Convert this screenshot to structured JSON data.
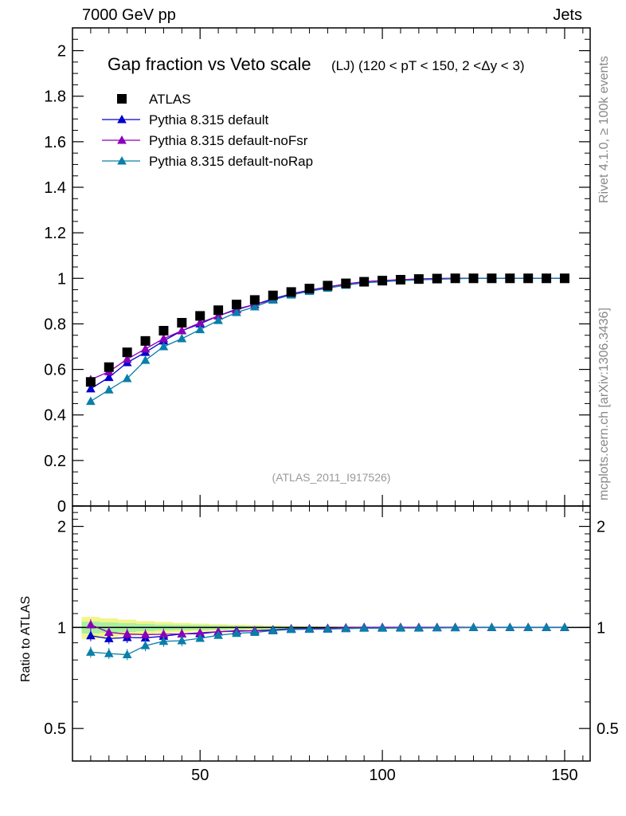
{
  "header": {
    "left": "7000 GeV pp",
    "right": "Jets"
  },
  "side_labels": {
    "rivet": "Rivet 4.1.0, ≥ 100k events",
    "mcplots": "mcplots.cern.ch [arXiv:1306.3436]"
  },
  "chart_data": {
    "type": "scatter",
    "title": "Gap fraction vs Veto scale",
    "subtitle": "(LJ) (120 < pT < 150, 2 <Δy < 3)",
    "watermark": "(ATLAS_2011_I917526)",
    "xlim": [
      15,
      157
    ],
    "ylim": [
      0,
      2.1
    ],
    "yticks": [
      "0",
      "0.2",
      "0.4",
      "0.6",
      "0.8",
      "1",
      "1.2",
      "1.4",
      "1.6",
      "1.8",
      "2"
    ],
    "xticks": [
      "50",
      "100",
      "150"
    ],
    "x": [
      20,
      25,
      30,
      35,
      40,
      45,
      50,
      55,
      60,
      65,
      70,
      75,
      80,
      85,
      90,
      95,
      100,
      105,
      110,
      115,
      120,
      125,
      130,
      135,
      140,
      145,
      150
    ],
    "series": [
      {
        "name": "ATLAS",
        "color": "#000000",
        "marker": "square",
        "values": [
          0.545,
          0.61,
          0.675,
          0.725,
          0.77,
          0.805,
          0.835,
          0.86,
          0.885,
          0.905,
          0.925,
          0.94,
          0.955,
          0.968,
          0.978,
          0.985,
          0.99,
          0.994,
          0.997,
          0.999,
          1.0,
          1.0,
          1.0,
          1.0,
          1.0,
          1.0,
          1.0
        ]
      },
      {
        "name": "Pythia 8.315 default",
        "color": "#0000cc",
        "marker": "triangle",
        "values": [
          0.515,
          0.565,
          0.63,
          0.675,
          0.725,
          0.77,
          0.8,
          0.835,
          0.865,
          0.885,
          0.91,
          0.932,
          0.948,
          0.962,
          0.975,
          0.985,
          0.99,
          0.994,
          0.997,
          0.999,
          1.0,
          1.0,
          1.0,
          1.0,
          1.0,
          1.0,
          1.0
        ]
      },
      {
        "name": "Pythia 8.315 default-noFsr",
        "color": "#8a00b8",
        "marker": "triangle",
        "values": [
          0.555,
          0.59,
          0.645,
          0.69,
          0.735,
          0.77,
          0.805,
          0.835,
          0.862,
          0.885,
          0.905,
          0.93,
          0.945,
          0.962,
          0.975,
          0.985,
          0.99,
          0.994,
          0.997,
          0.999,
          1.0,
          1.0,
          1.0,
          1.0,
          1.0,
          1.0,
          1.0
        ]
      },
      {
        "name": "Pythia 8.315 default-noRap",
        "color": "#0a7fa8",
        "marker": "triangle",
        "values": [
          0.46,
          0.51,
          0.56,
          0.64,
          0.7,
          0.735,
          0.775,
          0.815,
          0.85,
          0.875,
          0.905,
          0.927,
          0.943,
          0.957,
          0.97,
          0.98,
          0.985,
          0.99,
          0.993,
          0.996,
          0.998,
          1.0,
          1.0,
          1.0,
          1.0,
          1.0,
          1.0
        ]
      }
    ],
    "ratio": {
      "ylabel": "Ratio to ATLAS",
      "ylim": [
        0.4,
        2.3
      ],
      "yticks": [
        "0.5",
        "1",
        "2"
      ],
      "band_inner": [
        0.04,
        0.035,
        0.03,
        0.025,
        0.02,
        0.018,
        0.016,
        0.014,
        0.012,
        0.01,
        0.008,
        0.006,
        0.005,
        0.004,
        0.003,
        0.002,
        0.002,
        0.001,
        0.001,
        0.001,
        0.001,
        0.001,
        0.001,
        0.001,
        0.001,
        0.001,
        0.001
      ],
      "band_outer": [
        0.075,
        0.065,
        0.055,
        0.045,
        0.038,
        0.032,
        0.027,
        0.023,
        0.019,
        0.016,
        0.013,
        0.01,
        0.008,
        0.006,
        0.005,
        0.004,
        0.003,
        0.002,
        0.002,
        0.001,
        0.001,
        0.001,
        0.001,
        0.001,
        0.001,
        0.001,
        0.001
      ]
    }
  }
}
